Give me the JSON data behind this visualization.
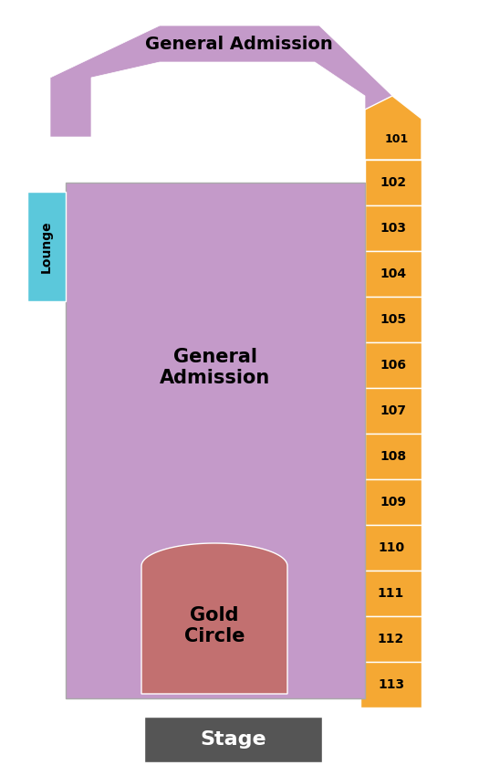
{
  "bg_color": "#ffffff",
  "ga_top_color": "#c49ac9",
  "ga_main_color": "#c49ac9",
  "gold_circle_color": "#c27070",
  "lounge_color": "#5bc8db",
  "stage_color": "#555555",
  "orange_color": "#f5a833",
  "sections": [
    "101",
    "102",
    "103",
    "104",
    "105",
    "106",
    "107",
    "108",
    "109",
    "110",
    "111",
    "112",
    "113"
  ],
  "section_label_fontsize": 10,
  "main_label_fontsize": 15,
  "stage_label_fontsize": 16,
  "lounge_label_fontsize": 10
}
